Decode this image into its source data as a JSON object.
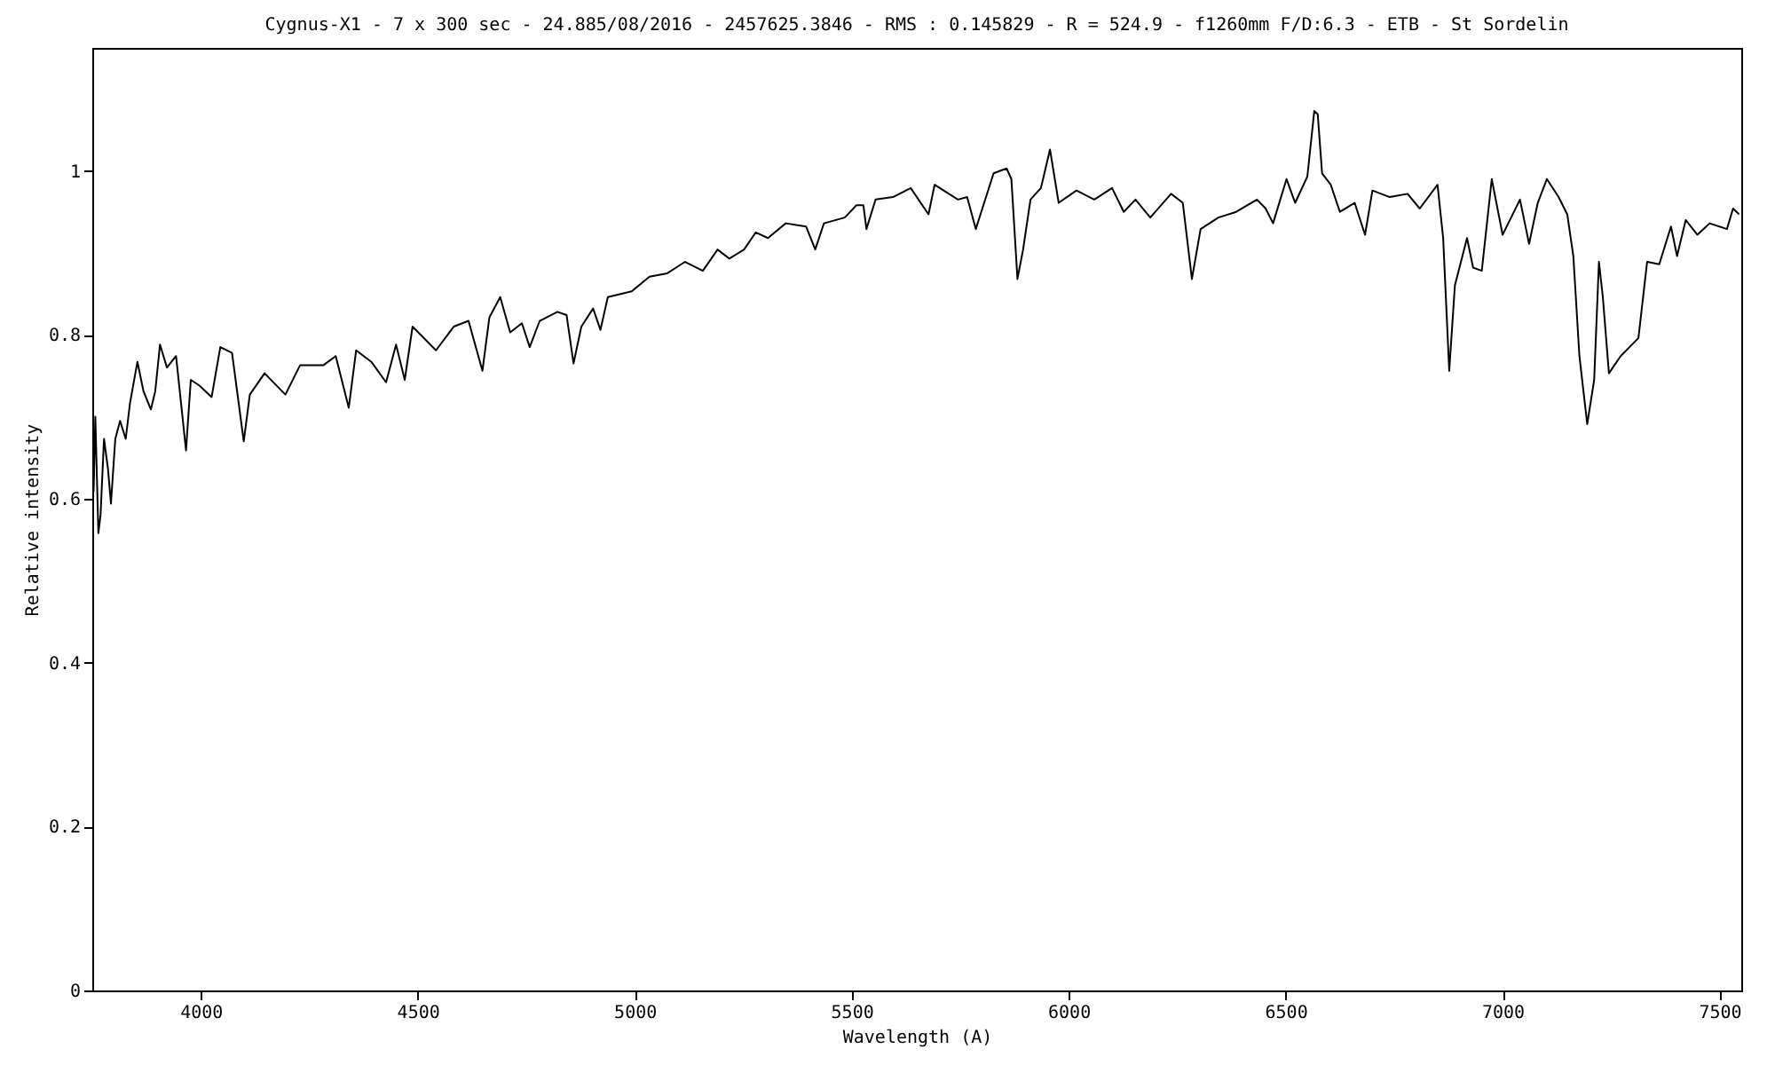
{
  "chart_data": {
    "type": "line",
    "title": "Cygnus-X1 - 7 x 300 sec - 24.885/08/2016 - 2457625.3846 - RMS : 0.145829 - R = 524.9 - f1260mm F/D:6.3 - ETB - St Sordelin",
    "xlabel": "Wavelength (A)",
    "ylabel": "Relative intensity",
    "xlim": [
      3750,
      7550
    ],
    "xticks": [
      4000,
      4500,
      5000,
      5500,
      6000,
      6500,
      7000,
      7500
    ],
    "ylim": [
      0,
      1.15
    ],
    "yticks": [
      0,
      0.2,
      0.4,
      0.6,
      0.8,
      1
    ],
    "grid": false,
    "marker": "none",
    "line_style": "solid",
    "series": [
      {
        "color": "#000000",
        "x": [
          3750,
          3753,
          3757,
          3764,
          3769,
          3777,
          3786,
          3793,
          3803,
          3814,
          3827,
          3837,
          3854,
          3868,
          3885,
          3895,
          3906,
          3922,
          3943,
          3966,
          3977,
          3997,
          4025,
          4045,
          4072,
          4099,
          4113,
          4147,
          4195,
          4229,
          4283,
          4311,
          4341,
          4358,
          4393,
          4427,
          4450,
          4470,
          4488,
          4542,
          4583,
          4617,
          4649,
          4665,
          4690,
          4713,
          4740,
          4758,
          4781,
          4822,
          4843,
          4859,
          4877,
          4904,
          4921,
          4938,
          4993,
          5034,
          5075,
          5116,
          5157,
          5191,
          5218,
          5252,
          5279,
          5307,
          5348,
          5395,
          5416,
          5436,
          5484,
          5511,
          5527,
          5534,
          5555,
          5595,
          5636,
          5677,
          5691,
          5745,
          5766,
          5786,
          5827,
          5857,
          5868,
          5882,
          5895,
          5912,
          5936,
          5957,
          5977,
          6018,
          6059,
          6100,
          6127,
          6154,
          6188,
          6236,
          6263,
          6284,
          6304,
          6345,
          6386,
          6434,
          6454,
          6471,
          6502,
          6522,
          6550,
          6566,
          6574,
          6584,
          6604,
          6625,
          6659,
          6683,
          6700,
          6740,
          6781,
          6809,
          6850,
          6863,
          6877,
          6890,
          6918,
          6932,
          6952,
          6975,
          7000,
          7040,
          7061,
          7081,
          7102,
          7129,
          7149,
          7163,
          7177,
          7195,
          7211,
          7222,
          7231,
          7245,
          7272,
          7313,
          7333,
          7361,
          7388,
          7402,
          7422,
          7449,
          7477,
          7517,
          7531,
          7545
        ],
        "values": [
          0.742,
          0.609,
          0.7,
          0.558,
          0.58,
          0.673,
          0.637,
          0.594,
          0.673,
          0.695,
          0.673,
          0.717,
          0.767,
          0.731,
          0.709,
          0.731,
          0.788,
          0.76,
          0.774,
          0.659,
          0.745,
          0.738,
          0.724,
          0.785,
          0.778,
          0.67,
          0.727,
          0.753,
          0.727,
          0.763,
          0.763,
          0.774,
          0.711,
          0.781,
          0.767,
          0.742,
          0.788,
          0.745,
          0.81,
          0.781,
          0.81,
          0.817,
          0.756,
          0.821,
          0.846,
          0.803,
          0.814,
          0.785,
          0.817,
          0.828,
          0.824,
          0.765,
          0.81,
          0.832,
          0.806,
          0.846,
          0.853,
          0.871,
          0.875,
          0.889,
          0.878,
          0.904,
          0.893,
          0.904,
          0.925,
          0.918,
          0.936,
          0.932,
          0.904,
          0.936,
          0.943,
          0.958,
          0.958,
          0.929,
          0.965,
          0.968,
          0.979,
          0.947,
          0.983,
          0.965,
          0.968,
          0.929,
          0.997,
          1.003,
          0.99,
          0.868,
          0.904,
          0.965,
          0.979,
          1.026,
          0.961,
          0.976,
          0.965,
          0.979,
          0.95,
          0.965,
          0.943,
          0.972,
          0.961,
          0.868,
          0.929,
          0.943,
          0.95,
          0.965,
          0.954,
          0.936,
          0.99,
          0.961,
          0.993,
          1.073,
          1.069,
          0.997,
          0.983,
          0.95,
          0.961,
          0.922,
          0.976,
          0.968,
          0.972,
          0.954,
          0.983,
          0.918,
          0.756,
          0.86,
          0.918,
          0.882,
          0.878,
          0.99,
          0.922,
          0.965,
          0.911,
          0.961,
          0.99,
          0.968,
          0.947,
          0.896,
          0.774,
          0.691,
          0.745,
          0.889,
          0.846,
          0.753,
          0.774,
          0.796,
          0.889,
          0.886,
          0.932,
          0.896,
          0.94,
          0.922,
          0.936,
          0.929,
          0.954,
          0.947
        ]
      }
    ]
  }
}
